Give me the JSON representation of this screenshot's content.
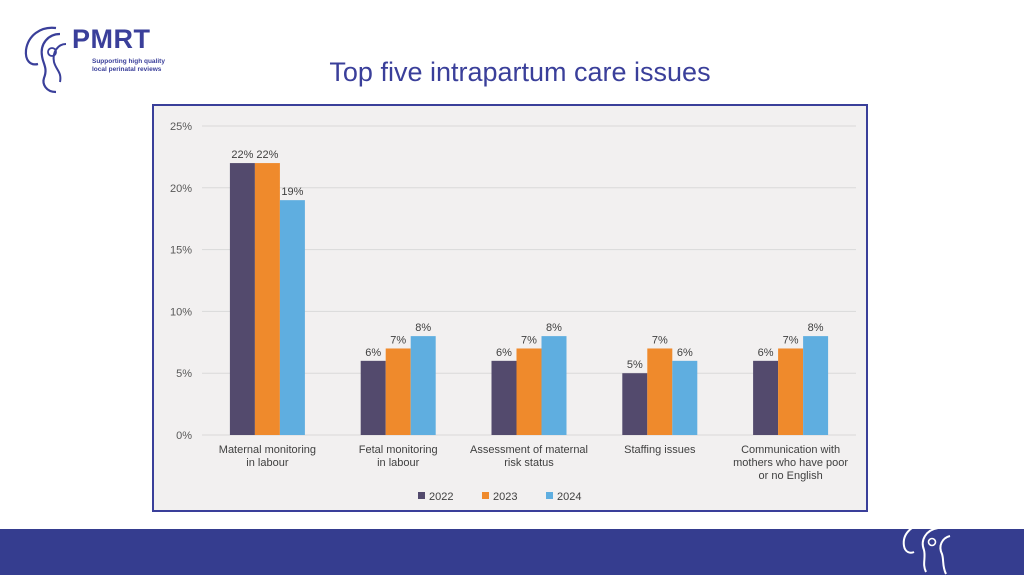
{
  "logo": {
    "name": "PMRT",
    "tagline_line1": "Supporting high quality",
    "tagline_line2": "local perinatal reviews",
    "colors": {
      "brand": "#3a3f9a"
    }
  },
  "page": {
    "title": "Top five intrapartum care issues"
  },
  "chart_data": {
    "type": "bar",
    "title": "",
    "xlabel": "",
    "ylabel": "",
    "ylim": [
      0,
      25
    ],
    "yticks": [
      "0%",
      "5%",
      "10%",
      "15%",
      "20%",
      "25%"
    ],
    "grid": true,
    "legend_position": "bottom-center",
    "categories": [
      [
        "Maternal monitoring",
        "in labour"
      ],
      [
        "Fetal monitoring",
        "in labour"
      ],
      [
        "Assessment of maternal",
        "risk status"
      ],
      [
        "Staffing issues"
      ],
      [
        "Communication with",
        "mothers who have poor",
        "or no English"
      ]
    ],
    "series": [
      {
        "name": "2022",
        "color": "#534a6d",
        "values": [
          22,
          6,
          6,
          5,
          6
        ],
        "labels": [
          "22%",
          "6%",
          "6%",
          "5%",
          "6%"
        ]
      },
      {
        "name": "2023",
        "color": "#ef8a2c",
        "values": [
          22,
          7,
          7,
          7,
          7
        ],
        "labels": [
          "22%",
          "7%",
          "7%",
          "7%",
          "7%"
        ]
      },
      {
        "name": "2024",
        "color": "#5faee0",
        "values": [
          19,
          8,
          8,
          6,
          8
        ],
        "labels": [
          "19%",
          "8%",
          "8%",
          "6%",
          "8%"
        ]
      }
    ]
  }
}
